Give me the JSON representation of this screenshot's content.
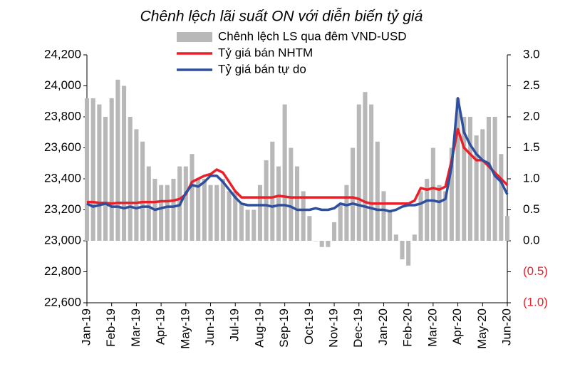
{
  "chart_data": {
    "type": "combo",
    "title": "Chênh lệch lãi suất ON với diễn biến tỷ giá",
    "categories": [
      "Jan-19",
      null,
      null,
      null,
      "Feb-19",
      null,
      null,
      null,
      "Mar-19",
      null,
      null,
      null,
      "Apr-19",
      null,
      null,
      null,
      "May-19",
      null,
      null,
      null,
      "Jun-19",
      null,
      null,
      null,
      "Jul-19",
      null,
      null,
      null,
      "Aug-19",
      null,
      null,
      null,
      "Sep-19",
      null,
      null,
      null,
      "Oct-19",
      null,
      null,
      null,
      "Nov-19",
      null,
      null,
      null,
      "Dec-19",
      null,
      null,
      null,
      "Jan-20",
      null,
      null,
      null,
      "Feb-20",
      null,
      null,
      null,
      "Mar-20",
      null,
      null,
      null,
      "Apr-20",
      null,
      null,
      null,
      "May-20",
      null,
      null,
      null,
      "Jun-20"
    ],
    "series": [
      {
        "name": "Chênh lệch LS qua đêm VND-USD",
        "type": "bar",
        "axis": "y2",
        "color": "#b8b8b8",
        "values": [
          2.3,
          2.3,
          2.2,
          2.0,
          2.3,
          2.6,
          2.5,
          2.0,
          1.8,
          1.6,
          1.2,
          1.0,
          0.9,
          0.9,
          1.0,
          1.2,
          1.2,
          1.4,
          1.0,
          1.0,
          0.9,
          0.9,
          1.0,
          0.8,
          0.8,
          0.6,
          0.5,
          0.5,
          0.9,
          1.3,
          1.6,
          1.2,
          2.2,
          1.5,
          1.2,
          0.8,
          0.4,
          0.0,
          -0.1,
          -0.1,
          0.3,
          0.6,
          0.9,
          1.5,
          2.2,
          2.4,
          2.2,
          1.6,
          0.8,
          0.5,
          0.1,
          -0.3,
          -0.4,
          0.1,
          0.8,
          1.0,
          1.5,
          0.9,
          0.8,
          1.5,
          2.3,
          2.0,
          2.0,
          1.7,
          1.8,
          2.0,
          2.0,
          1.4,
          0.4
        ]
      },
      {
        "name": "Tỷ giá bán NHTM",
        "type": "line",
        "color": "#e8202a",
        "values": [
          23250,
          23250,
          23245,
          23245,
          23240,
          23245,
          23245,
          23245,
          23245,
          23250,
          23250,
          23250,
          23255,
          23255,
          23260,
          23270,
          23300,
          23380,
          23400,
          23420,
          23430,
          23460,
          23440,
          23380,
          23320,
          23280,
          23280,
          23280,
          23280,
          23280,
          23280,
          23290,
          23285,
          23280,
          23280,
          23280,
          23280,
          23280,
          23280,
          23280,
          23280,
          23280,
          23280,
          23280,
          23270,
          23250,
          23240,
          23240,
          23240,
          23240,
          23240,
          23240,
          23240,
          23260,
          23340,
          23330,
          23340,
          23330,
          23350,
          23520,
          23720,
          23600,
          23560,
          23520,
          23520,
          23480,
          23440,
          23400,
          23360
        ]
      },
      {
        "name": "Tỷ giá bán tự do",
        "type": "line",
        "color": "#2d4f9e",
        "values": [
          23240,
          23220,
          23230,
          23240,
          23220,
          23220,
          23210,
          23220,
          23210,
          23220,
          23220,
          23200,
          23210,
          23220,
          23220,
          23230,
          23310,
          23360,
          23350,
          23380,
          23420,
          23420,
          23380,
          23330,
          23280,
          23240,
          23230,
          23230,
          23230,
          23230,
          23220,
          23230,
          23230,
          23220,
          23200,
          23200,
          23200,
          23210,
          23200,
          23200,
          23210,
          23240,
          23230,
          23240,
          23230,
          23220,
          23210,
          23200,
          23200,
          23190,
          23200,
          23220,
          23230,
          23230,
          23240,
          23260,
          23260,
          23250,
          23270,
          23480,
          23920,
          23700,
          23620,
          23560,
          23520,
          23500,
          23420,
          23380,
          23300
        ]
      }
    ],
    "ylim": [
      22600,
      24200
    ],
    "yticks": [
      {
        "value": 22600,
        "label": "22,600"
      },
      {
        "value": 22800,
        "label": "22,800"
      },
      {
        "value": 23000,
        "label": "23,000"
      },
      {
        "value": 23200,
        "label": "23,200"
      },
      {
        "value": 23400,
        "label": "23,400"
      },
      {
        "value": 23600,
        "label": "23,600"
      },
      {
        "value": 23800,
        "label": "23,800"
      },
      {
        "value": 24000,
        "label": "24,000"
      },
      {
        "value": 24200,
        "label": "24,200"
      }
    ],
    "y2lim": [
      -1.0,
      3.0
    ],
    "y2ticks": [
      {
        "value": -1.0,
        "label": "(1.0)"
      },
      {
        "value": -0.5,
        "label": "(0.5)"
      },
      {
        "value": 0.0,
        "label": "0.0"
      },
      {
        "value": 0.5,
        "label": "0.5"
      },
      {
        "value": 1.0,
        "label": "1.0"
      },
      {
        "value": 1.5,
        "label": "1.5"
      },
      {
        "value": 2.0,
        "label": "2.0"
      },
      {
        "value": 2.5,
        "label": "2.5"
      },
      {
        "value": 3.0,
        "label": "3.0"
      }
    ],
    "negative_tick_color": "#e8202a",
    "grid": false
  }
}
